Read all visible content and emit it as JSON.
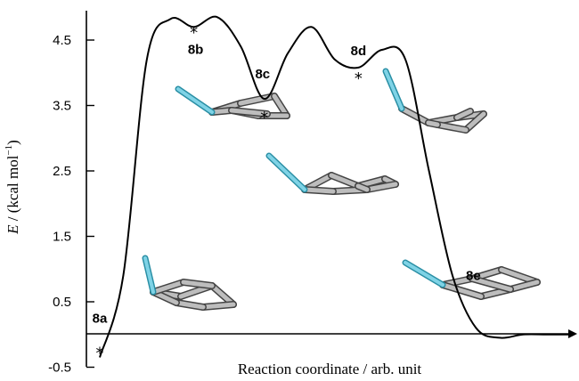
{
  "chart_data": {
    "type": "line",
    "title": "",
    "xlabel": "Reaction coordinate / arb. unit",
    "ylabel_parts": {
      "symbol": "E",
      "text": " / (kcal mol",
      "sup": "−1",
      "close": ")"
    },
    "ylim": [
      -0.5,
      5.0
    ],
    "yticks": [
      4.5,
      3.5,
      2.5,
      1.5,
      0.5,
      -0.5
    ],
    "ytick_labels": [
      "4.5",
      "3.5",
      "2.5",
      "1.5",
      "0.5",
      "-0.5"
    ],
    "grid": false,
    "series": [
      {
        "x": [
          0.0,
          0.5,
          1.0,
          1.5,
          2.0,
          2.5,
          3.0,
          3.5,
          4.0,
          4.5,
          5.0,
          5.5,
          6.0,
          6.5,
          7.0,
          7.5,
          8.0,
          8.5,
          9.0,
          9.5,
          10.0
        ],
        "values": [
          -0.35,
          0.9,
          4.2,
          4.82,
          4.7,
          4.85,
          4.4,
          3.6,
          4.3,
          4.7,
          4.2,
          4.08,
          4.35,
          4.2,
          2.5,
          0.9,
          0.1,
          -0.05,
          0,
          0,
          0
        ]
      }
    ],
    "points": [
      {
        "label": "8a",
        "x": 0.0,
        "y": -0.2
      },
      {
        "label": "8b",
        "x": 2.0,
        "y": 4.7
      },
      {
        "label": "8c",
        "x": 3.5,
        "y": 3.4
      },
      {
        "label": "8d",
        "x": 5.5,
        "y": 4.0
      },
      {
        "label": "8e",
        "x": 8.0,
        "y": 0.7
      }
    ]
  }
}
